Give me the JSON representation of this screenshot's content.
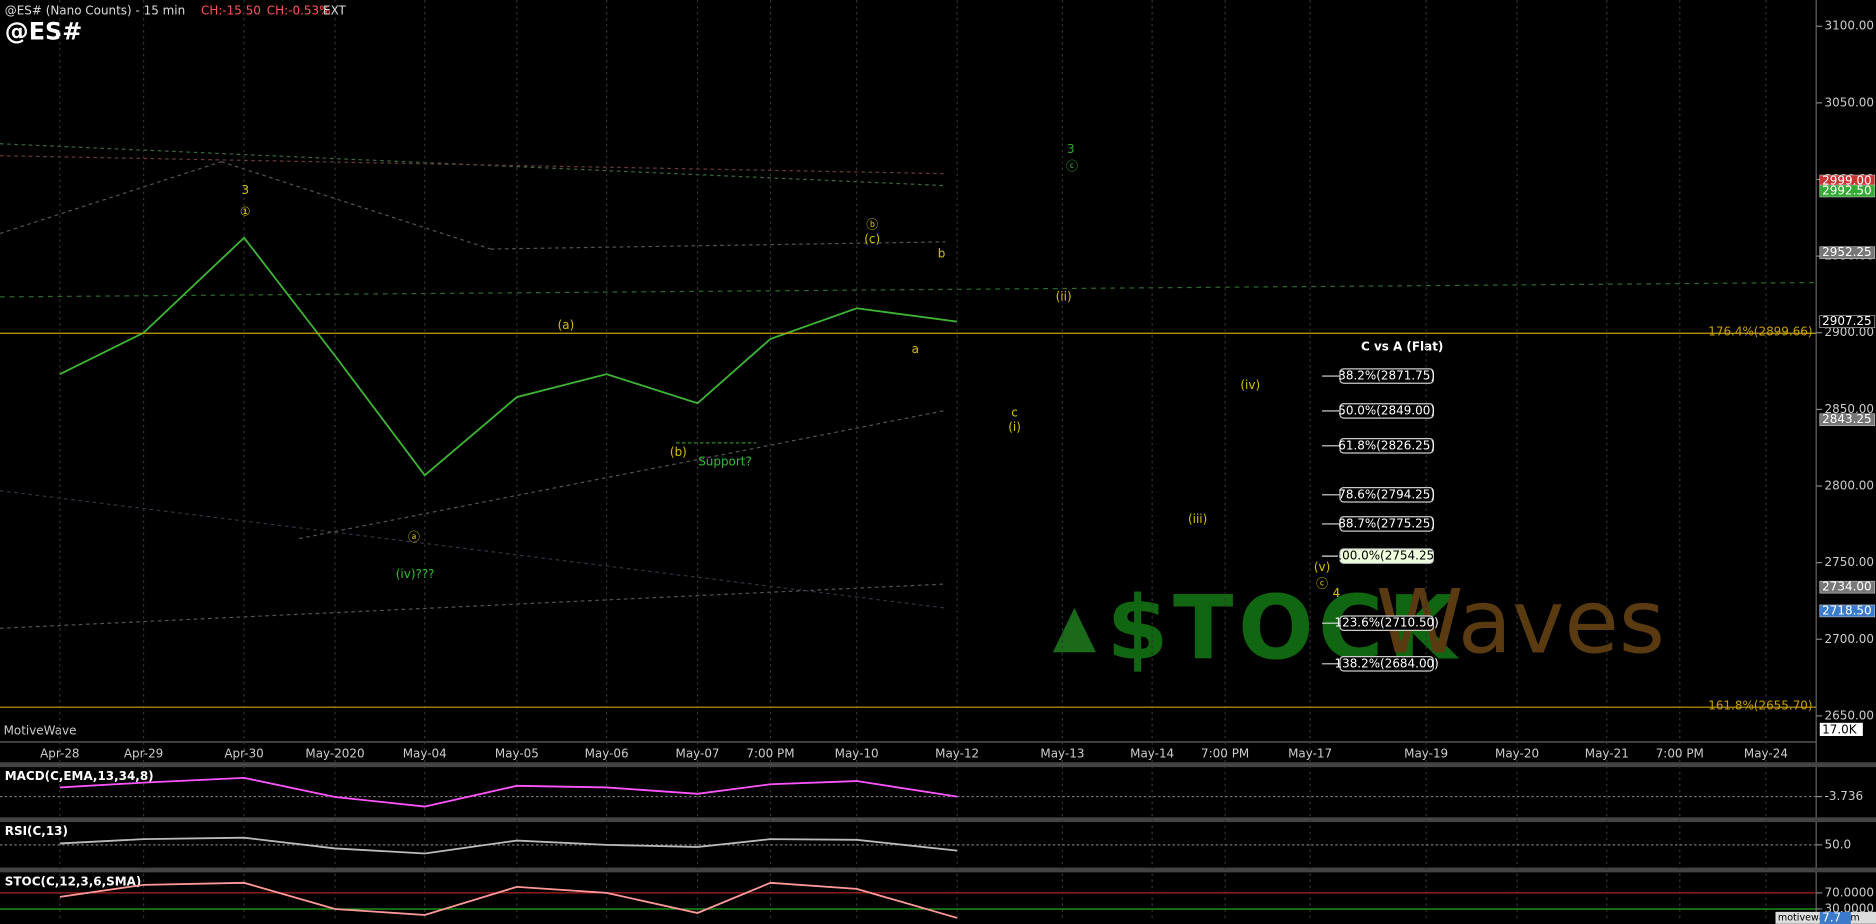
{
  "chart_data": [
    {
      "type": "line",
      "title": "@ES# (Nano Counts) - 15 min",
      "subtitle": "@ES#",
      "change": "CH:-15.50",
      "change_pct": "CH:-0.53%",
      "session": "EXT",
      "categories": [
        "Apr-28",
        "Apr-29",
        "Apr-30",
        "May-2020",
        "May-04",
        "May-05",
        "May-06",
        "May-07",
        "7:00 PM",
        "May-10",
        "May-12",
        "May-13",
        "May-14",
        "7:00 PM",
        "May-17",
        "May-19",
        "May-20",
        "May-21",
        "7:00 PM",
        "May-24"
      ],
      "series": [
        {
          "color": "#3fb535",
          "values": [
            2873,
            2900,
            2962,
            2885,
            2807,
            2858,
            2873,
            2854,
            2896,
            2916,
            2907.25,
            null,
            null,
            null,
            null,
            null,
            null,
            null,
            null,
            null
          ]
        }
      ],
      "ylim": [
        2633,
        3117
      ],
      "yticks": [
        {
          "value": 2650,
          "label": "2650.00"
        },
        {
          "value": 2700,
          "label": "2700.00"
        },
        {
          "value": 2750,
          "label": "2750.00"
        },
        {
          "value": 2800,
          "label": "2800.00"
        },
        {
          "value": 2850,
          "label": "2850.00"
        },
        {
          "value": 2900,
          "label": "2900.00"
        },
        {
          "value": 2950,
          "label": "2950.00"
        },
        {
          "value": 3000,
          "label": "3000.00"
        },
        {
          "value": 3050,
          "label": "3050.00"
        },
        {
          "value": 3100,
          "label": "3100.00"
        }
      ],
      "price_tags": [
        {
          "value": 2999,
          "label": "2999.00"
        },
        {
          "value": 2992.5,
          "label": "2992.50"
        },
        {
          "value": 2952.25,
          "label": "2952.25"
        },
        {
          "value": 2907.25,
          "label": "2907.25"
        },
        {
          "value": 2843.25,
          "label": "2843.25"
        },
        {
          "value": 2734,
          "label": "2734.00"
        },
        {
          "value": 2718.5,
          "label": "2718.50"
        }
      ],
      "volume_tag": "17.0K",
      "retracements": [
        {
          "value": 2899.66,
          "label": "176.4%(2899.66)"
        },
        {
          "value": 2655.7,
          "label": "161.8%(2655.70)"
        }
      ],
      "fib_title": "C vs A (Flat)",
      "fib_levels": [
        {
          "value": 2871.75,
          "label": "38.2%(2871.75)"
        },
        {
          "value": 2849,
          "label": "50.0%(2849.00)"
        },
        {
          "value": 2826.25,
          "label": "61.8%(2826.25)"
        },
        {
          "value": 2794.25,
          "label": "78.6%(2794.25)"
        },
        {
          "value": 2775.25,
          "label": "88.7%(2775.25)"
        },
        {
          "value": 2754.25,
          "label": "100.0%(2754.25)"
        },
        {
          "value": 2710.5,
          "label": "123.6%(2710.50)"
        },
        {
          "value": 2684,
          "label": "138.2%(2684.00)"
        }
      ],
      "wave_labels": [
        "3",
        "①",
        "(a)",
        "(b)",
        "ⓐ",
        "(iv)???",
        "Support?",
        "ⓑ",
        "(c)",
        "b",
        "a",
        "(ii)",
        "3",
        "ⓒ",
        "c",
        "(i)",
        "(iv)",
        "(iii)",
        "(v)",
        "ⓒ",
        "4"
      ],
      "watermark": "MotiveWave",
      "logo": [
        "$TOCK",
        "Waves"
      ],
      "footer": "motivewave.com"
    },
    {
      "type": "line",
      "title": "MACD(C,EMA,13,34,8)",
      "series": [
        {
          "color": "#ff55ff",
          "values": [
            2,
            5,
            8,
            -4,
            -10,
            3,
            2,
            -2,
            4,
            6,
            -3.736,
            null,
            null,
            null,
            null,
            null,
            null,
            null,
            null,
            null
          ]
        }
      ],
      "ylim": [
        -16,
        14
      ],
      "yticks": [
        -3.736
      ]
    },
    {
      "type": "line",
      "title": "RSI(C,13)",
      "series": [
        {
          "color": "#bbbbbb",
          "values": [
            52,
            58,
            60,
            45,
            38,
            56,
            50,
            47,
            58,
            57,
            42,
            null,
            null,
            null,
            null,
            null,
            null,
            null,
            null,
            null
          ]
        }
      ],
      "ylim": [
        20,
        80
      ],
      "yticks": [
        {
          "value": 50,
          "label": "50.0"
        }
      ]
    },
    {
      "type": "line",
      "title": "STOC(C,12,3,6,SMA)",
      "series": [
        {
          "color": "#ff9999",
          "values": [
            60,
            90,
            95,
            30,
            15,
            85,
            70,
            20,
            95,
            80,
            7.7,
            null,
            null,
            null,
            null,
            null,
            null,
            null,
            null,
            null
          ]
        }
      ],
      "ylim": [
        5,
        118
      ],
      "yticks": [
        {
          "value": 70,
          "label": "70.0000"
        },
        {
          "value": 30,
          "label": "30.0000"
        }
      ],
      "tag": {
        "value": 7.7,
        "label": "7.7"
      }
    }
  ]
}
